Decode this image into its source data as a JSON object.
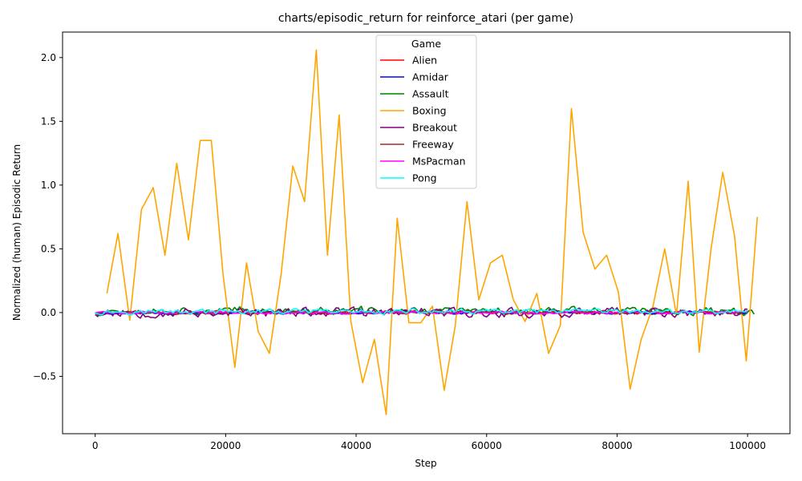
{
  "chart_data": {
    "type": "line",
    "title": "charts/episodic_return for reinforce_atari (per game)",
    "xlabel": "Step",
    "ylabel": "Normalized (human) Episodic Return",
    "xlim": [
      -5000,
      106500
    ],
    "ylim": [
      -0.95,
      2.2
    ],
    "xticks": [
      0,
      20000,
      40000,
      60000,
      80000,
      100000
    ],
    "xtick_labels": [
      "0",
      "20000",
      "40000",
      "60000",
      "80000",
      "100000"
    ],
    "yticks": [
      -0.5,
      0.0,
      0.5,
      1.0,
      1.5,
      2.0
    ],
    "ytick_labels": [
      "−0.5",
      "0.0",
      "0.5",
      "1.0",
      "1.5",
      "2.0"
    ],
    "grid": false,
    "legend": {
      "title": "Game",
      "placement": "upper-center"
    },
    "series": [
      {
        "name": "Alien",
        "color": "#ff0000",
        "kind": "noise",
        "seed": 11,
        "x_start": 0,
        "x_end": 100000,
        "amp": 0.015,
        "bias": 0.0
      },
      {
        "name": "Amidar",
        "color": "#0000ff",
        "kind": "noise",
        "seed": 23,
        "x_start": 0,
        "x_end": 100000,
        "amp": 0.012,
        "bias": 0.0
      },
      {
        "name": "Assault",
        "color": "#008000",
        "kind": "noise",
        "seed": 37,
        "x_start": 0,
        "x_end": 101000,
        "amp": 0.03,
        "bias": 0.02
      },
      {
        "name": "Boxing",
        "color": "#ffa500",
        "kind": "points",
        "x": [
          1800,
          3500,
          5300,
          7100,
          8900,
          10700,
          12500,
          14300,
          16100,
          17800,
          19600,
          21400,
          23200,
          25000,
          26700,
          28500,
          30300,
          32100,
          33900,
          35600,
          37400,
          39200,
          41000,
          42800,
          44600,
          46300,
          48100,
          49900,
          51700,
          53500,
          55200,
          57000,
          58800,
          60600,
          62400,
          64100,
          65900,
          67700,
          69500,
          71300,
          73000,
          74800,
          76600,
          78400,
          80200,
          82000,
          83700,
          85500,
          87300,
          89100,
          90900,
          92600,
          94400,
          96200,
          98000,
          99800,
          101500
        ],
        "y": [
          0.15,
          0.62,
          -0.06,
          0.81,
          0.98,
          0.45,
          1.17,
          0.57,
          1.35,
          1.35,
          0.3,
          -0.43,
          0.39,
          -0.15,
          -0.32,
          0.3,
          1.15,
          0.87,
          2.06,
          0.45,
          1.55,
          -0.07,
          -0.55,
          -0.21,
          -0.8,
          0.74,
          -0.08,
          -0.08,
          0.05,
          -0.61,
          -0.1,
          0.87,
          0.1,
          0.39,
          0.45,
          0.1,
          -0.07,
          0.15,
          -0.32,
          -0.1,
          1.6,
          0.63,
          0.34,
          0.45,
          0.16,
          -0.6,
          -0.21,
          0.05,
          0.5,
          -0.02,
          1.03,
          -0.31,
          0.5,
          1.1,
          0.6,
          -0.38,
          0.75
        ]
      },
      {
        "name": "Breakout",
        "color": "#800080",
        "kind": "noise",
        "seed": 53,
        "x_start": 0,
        "x_end": 100000,
        "amp": 0.04,
        "bias": 0.0
      },
      {
        "name": "Freeway",
        "color": "#a52a2a",
        "kind": "noise",
        "seed": 71,
        "x_start": 0,
        "x_end": 100000,
        "amp": 0.01,
        "bias": 0.0
      },
      {
        "name": "MsPacman",
        "color": "#ff00ff",
        "kind": "noise",
        "seed": 89,
        "x_start": 0,
        "x_end": 100000,
        "amp": 0.012,
        "bias": 0.0
      },
      {
        "name": "Pong",
        "color": "#00ffff",
        "kind": "noise",
        "seed": 97,
        "x_start": 0,
        "x_end": 100000,
        "amp": 0.02,
        "bias": 0.01
      }
    ]
  }
}
